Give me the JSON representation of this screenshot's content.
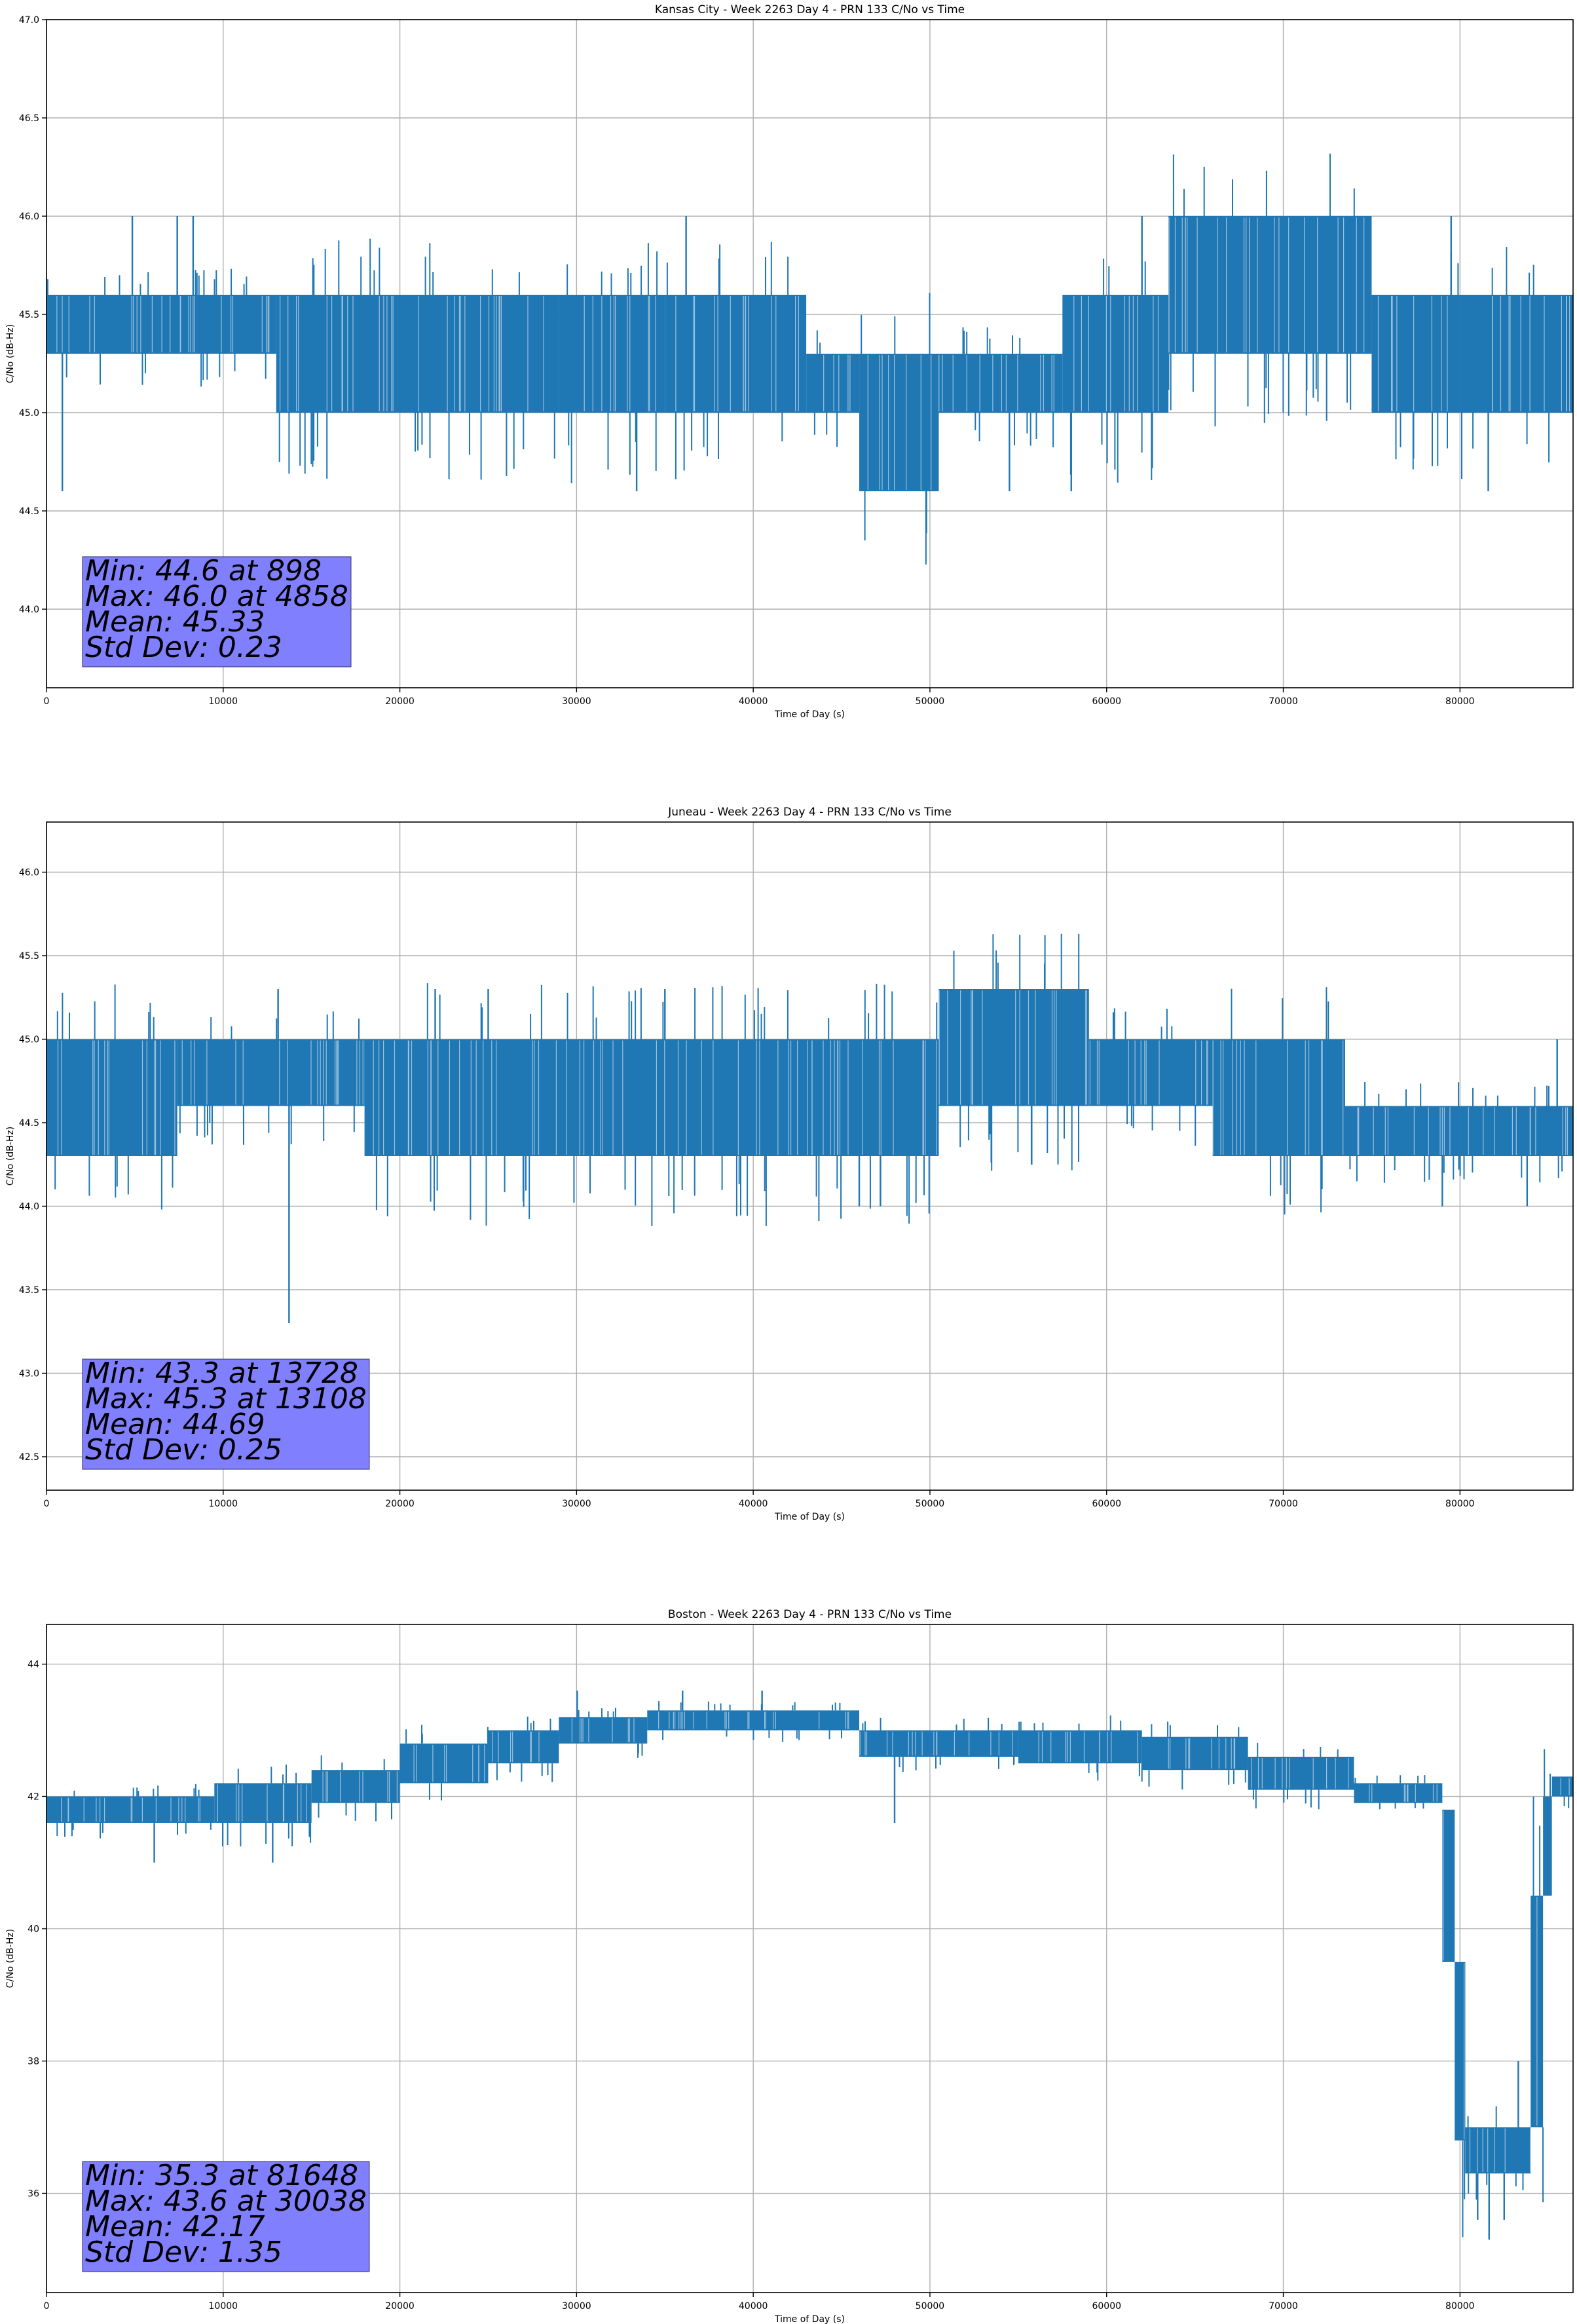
{
  "chart_data": [
    {
      "type": "line",
      "title": "Kansas City - Week 2263 Day 4 - PRN 133 C/No vs Time",
      "xlabel": "Time of Day (s)",
      "ylabel": "C/No (dB-Hz)",
      "xlim": [
        0,
        86400
      ],
      "ylim": [
        43.6,
        47.0
      ],
      "xticks": [
        0,
        10000,
        20000,
        30000,
        40000,
        50000,
        60000,
        70000,
        80000
      ],
      "yticks": [
        44.0,
        44.5,
        45.0,
        45.5,
        46.0,
        46.5,
        47.0
      ],
      "ytick_decimals": 1,
      "grid": true,
      "color": "#1f77b4",
      "series": [
        {
          "segments": [
            {
              "x0": 0,
              "x1": 13000,
              "lo": 45.3,
              "hi": 45.6
            },
            {
              "x0": 13000,
              "x1": 19000,
              "lo": 45.0,
              "hi": 45.6
            },
            {
              "x0": 19000,
              "x1": 29000,
              "lo": 45.0,
              "hi": 45.6
            },
            {
              "x0": 29000,
              "x1": 35000,
              "lo": 45.0,
              "hi": 45.6
            },
            {
              "x0": 35000,
              "x1": 43000,
              "lo": 45.0,
              "hi": 45.6
            },
            {
              "x0": 43000,
              "x1": 46000,
              "lo": 45.0,
              "hi": 45.3
            },
            {
              "x0": 46000,
              "x1": 50500,
              "lo": 44.6,
              "hi": 45.3
            },
            {
              "x0": 50500,
              "x1": 57500,
              "lo": 45.0,
              "hi": 45.3
            },
            {
              "x0": 57500,
              "x1": 63500,
              "lo": 45.0,
              "hi": 45.6
            },
            {
              "x0": 63500,
              "x1": 75000,
              "lo": 45.3,
              "hi": 46.0
            },
            {
              "x0": 75000,
              "x1": 80000,
              "lo": 45.0,
              "hi": 45.6
            },
            {
              "x0": 80000,
              "x1": 86400,
              "lo": 45.0,
              "hi": 45.6
            }
          ],
          "spikes": [
            {
              "x": 898,
              "y": 44.6
            },
            {
              "x": 4858,
              "y": 46.0
            },
            {
              "x": 7400,
              "y": 46.0
            },
            {
              "x": 8300,
              "y": 46.0
            },
            {
              "x": 33400,
              "y": 44.6
            },
            {
              "x": 36200,
              "y": 46.0
            },
            {
              "x": 46200,
              "y": 44.6
            },
            {
              "x": 54500,
              "y": 44.6
            },
            {
              "x": 58000,
              "y": 44.6
            },
            {
              "x": 62000,
              "y": 46.0
            },
            {
              "x": 79500,
              "y": 46.0
            },
            {
              "x": 81600,
              "y": 44.6
            }
          ]
        }
      ],
      "stats_box": [
        "Min: 44.6 at 898",
        "Max: 46.0 at 4858",
        "Mean: 45.33",
        "Std Dev: 0.23"
      ]
    },
    {
      "type": "line",
      "title": "Juneau - Week 2263 Day 4 - PRN 133 C/No vs Time",
      "xlabel": "Time of Day (s)",
      "ylabel": "C/No (dB-Hz)",
      "xlim": [
        0,
        86400
      ],
      "ylim": [
        42.3,
        46.3
      ],
      "xticks": [
        0,
        10000,
        20000,
        30000,
        40000,
        50000,
        60000,
        70000,
        80000
      ],
      "yticks": [
        42.5,
        43.0,
        43.5,
        44.0,
        44.5,
        45.0,
        45.5,
        46.0
      ],
      "ytick_decimals": 1,
      "grid": true,
      "color": "#1f77b4",
      "series": [
        {
          "segments": [
            {
              "x0": 0,
              "x1": 7400,
              "lo": 44.3,
              "hi": 45.0
            },
            {
              "x0": 7400,
              "x1": 18000,
              "lo": 44.6,
              "hi": 45.0
            },
            {
              "x0": 18000,
              "x1": 27500,
              "lo": 44.3,
              "hi": 45.0
            },
            {
              "x0": 27500,
              "x1": 35000,
              "lo": 44.3,
              "hi": 45.0
            },
            {
              "x0": 35000,
              "x1": 48000,
              "lo": 44.3,
              "hi": 45.0
            },
            {
              "x0": 48000,
              "x1": 50500,
              "lo": 44.3,
              "hi": 45.0
            },
            {
              "x0": 50500,
              "x1": 59000,
              "lo": 44.6,
              "hi": 45.3
            },
            {
              "x0": 59000,
              "x1": 66000,
              "lo": 44.6,
              "hi": 45.0
            },
            {
              "x0": 66000,
              "x1": 73500,
              "lo": 44.3,
              "hi": 45.0
            },
            {
              "x0": 73500,
              "x1": 80000,
              "lo": 44.3,
              "hi": 44.6
            },
            {
              "x0": 80000,
              "x1": 86400,
              "lo": 44.3,
              "hi": 44.6
            }
          ],
          "spikes": [
            {
              "x": 13108,
              "y": 45.3
            },
            {
              "x": 13728,
              "y": 43.3
            },
            {
              "x": 22000,
              "y": 45.3
            },
            {
              "x": 25000,
              "y": 45.3
            },
            {
              "x": 35000,
              "y": 45.3
            },
            {
              "x": 46000,
              "y": 44.0
            },
            {
              "x": 47200,
              "y": 44.0
            },
            {
              "x": 85500,
              "y": 45.0
            },
            {
              "x": 79000,
              "y": 44.0
            },
            {
              "x": 83800,
              "y": 44.0
            }
          ]
        }
      ],
      "stats_box": [
        "Min: 43.3 at 13728",
        "Max: 45.3 at 13108",
        "Mean: 44.69",
        "Std Dev: 0.25"
      ]
    },
    {
      "type": "line",
      "title": "Boston - Week 2263 Day 4 - PRN 133 C/No vs Time",
      "xlabel": "Time of Day (s)",
      "ylabel": "C/No (dB-Hz)",
      "xlim": [
        0,
        86400
      ],
      "ylim": [
        34.5,
        44.6
      ],
      "xticks": [
        0,
        10000,
        20000,
        30000,
        40000,
        50000,
        60000,
        70000,
        80000
      ],
      "yticks": [
        36,
        38,
        40,
        42,
        44
      ],
      "ytick_decimals": 0,
      "grid": true,
      "color": "#1f77b4",
      "series": [
        {
          "segments": [
            {
              "x0": 0,
              "x1": 9500,
              "lo": 41.6,
              "hi": 42.0
            },
            {
              "x0": 9500,
              "x1": 15000,
              "lo": 41.6,
              "hi": 42.2
            },
            {
              "x0": 15000,
              "x1": 20000,
              "lo": 41.9,
              "hi": 42.4
            },
            {
              "x0": 20000,
              "x1": 25000,
              "lo": 42.2,
              "hi": 42.8
            },
            {
              "x0": 25000,
              "x1": 29000,
              "lo": 42.5,
              "hi": 43.0
            },
            {
              "x0": 29000,
              "x1": 34000,
              "lo": 42.8,
              "hi": 43.2
            },
            {
              "x0": 34000,
              "x1": 46000,
              "lo": 43.0,
              "hi": 43.3
            },
            {
              "x0": 46000,
              "x1": 55000,
              "lo": 42.6,
              "hi": 43.0
            },
            {
              "x0": 55000,
              "x1": 62000,
              "lo": 42.5,
              "hi": 43.0
            },
            {
              "x0": 62000,
              "x1": 68000,
              "lo": 42.4,
              "hi": 42.9
            },
            {
              "x0": 68000,
              "x1": 74000,
              "lo": 42.1,
              "hi": 42.6
            },
            {
              "x0": 74000,
              "x1": 79000,
              "lo": 41.9,
              "hi": 42.2
            },
            {
              "x0": 79000,
              "x1": 79700,
              "lo": 39.5,
              "hi": 41.8
            },
            {
              "x0": 79700,
              "x1": 80300,
              "lo": 36.8,
              "hi": 39.5
            },
            {
              "x0": 80300,
              "x1": 84000,
              "lo": 36.3,
              "hi": 37.0
            },
            {
              "x0": 84000,
              "x1": 84700,
              "lo": 37.0,
              "hi": 40.5
            },
            {
              "x0": 84700,
              "x1": 85200,
              "lo": 40.5,
              "hi": 42.0
            },
            {
              "x0": 85200,
              "x1": 86400,
              "lo": 42.0,
              "hi": 42.3
            }
          ],
          "spikes": [
            {
              "x": 6100,
              "y": 41.0
            },
            {
              "x": 12800,
              "y": 41.0
            },
            {
              "x": 30038,
              "y": 43.6
            },
            {
              "x": 36000,
              "y": 43.6
            },
            {
              "x": 40500,
              "y": 43.6
            },
            {
              "x": 48000,
              "y": 41.6
            },
            {
              "x": 81648,
              "y": 35.3
            },
            {
              "x": 81000,
              "y": 35.6
            },
            {
              "x": 82500,
              "y": 35.6
            },
            {
              "x": 83300,
              "y": 38.0
            }
          ]
        }
      ],
      "stats_box": [
        "Min: 35.3 at 81648",
        "Max: 43.6 at 30038",
        "Mean: 42.17",
        "Std Dev: 1.35"
      ]
    }
  ]
}
